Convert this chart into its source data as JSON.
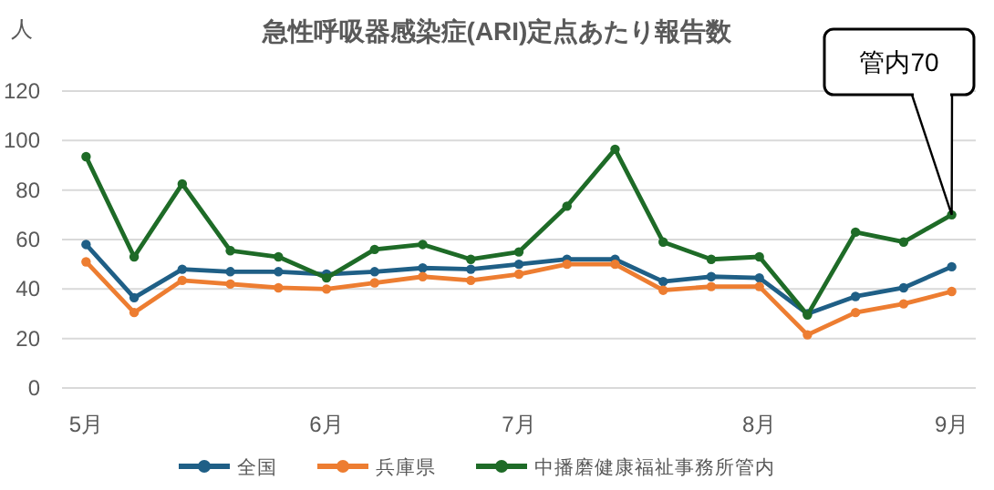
{
  "chart_data": {
    "type": "line",
    "title": "急性呼吸器感染症(ARI)定点あたり報告数",
    "ylabel": "人",
    "categories": [
      "5月",
      null,
      null,
      null,
      null,
      "6月",
      null,
      null,
      null,
      "7月",
      null,
      null,
      null,
      null,
      "8月",
      null,
      null,
      null,
      "9月"
    ],
    "series": [
      {
        "name": "全国",
        "color": "#1f5f86",
        "values": [
          58,
          36.5,
          48,
          47,
          47,
          46,
          47,
          48.5,
          48,
          50,
          52,
          52,
          43,
          45,
          44.5,
          30,
          37,
          40.5,
          49
        ]
      },
      {
        "name": "兵庫県",
        "color": "#ed7d31",
        "values": [
          51,
          30.5,
          43.5,
          42,
          40.5,
          40,
          42.5,
          45,
          43.5,
          46,
          50,
          50,
          39.5,
          41,
          41,
          21.5,
          30.5,
          34,
          39
        ]
      },
      {
        "name": "中播磨健康福祉事務所管内",
        "color": "#1e6b27",
        "values": [
          93.5,
          53,
          82.5,
          55.5,
          53,
          44.5,
          56,
          58,
          52,
          55,
          73.5,
          96.5,
          59,
          52,
          53,
          29.5,
          63,
          59,
          70
        ]
      }
    ],
    "ylim": [
      0,
      120
    ],
    "yticks": [
      0,
      20,
      40,
      60,
      80,
      100,
      120
    ],
    "grid": "y",
    "legend": "bottom",
    "marker": "circle",
    "line_style": "solid",
    "annotations": [
      "管内70"
    ]
  }
}
